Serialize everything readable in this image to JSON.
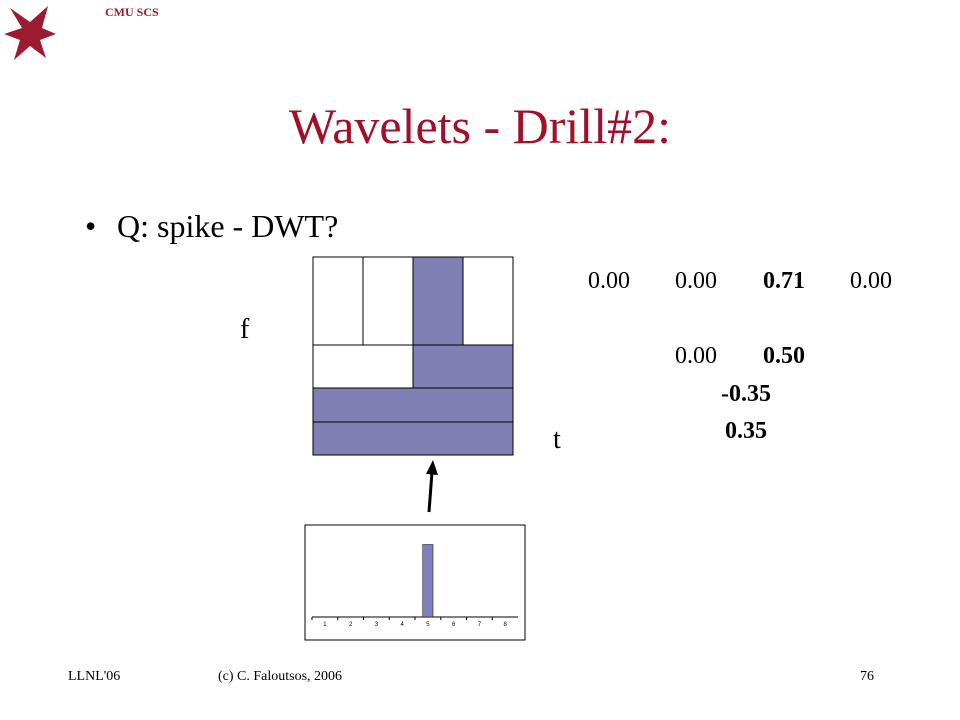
{
  "header": {
    "logo_text": "CMU SCS",
    "title": "Wavelets - Drill#2:"
  },
  "bullet": "Q: spike - DWT?",
  "tiling": {
    "f_label": "f",
    "t_label": "t"
  },
  "coefficients": [
    [
      "0.00",
      "0.00",
      "0.71",
      "0.00"
    ],
    [
      "0.00",
      "0.50"
    ],
    [
      "-0.35"
    ],
    [
      "0.35"
    ]
  ],
  "spike_chart": {
    "type": "bar",
    "categories": [
      "1",
      "2",
      "3",
      "4",
      "5",
      "6",
      "7",
      "8"
    ],
    "values": [
      0,
      0,
      0,
      0,
      1,
      0,
      0,
      0
    ],
    "color": "#8080c0",
    "ylim": [
      0,
      1.2
    ]
  },
  "footer": {
    "left": "LLNL'06",
    "center": "(c) C. Faloutsos, 2006",
    "right": "76"
  }
}
